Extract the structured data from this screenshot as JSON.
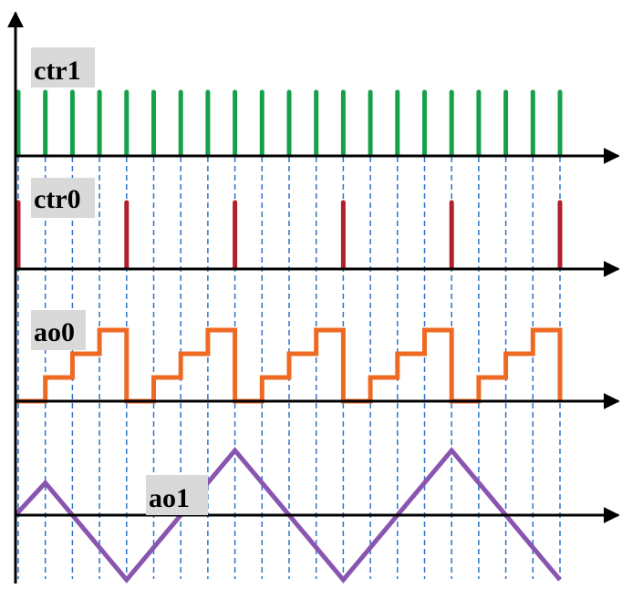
{
  "labels": {
    "ctr1": "ctr1",
    "ctr0": "ctr0",
    "ao0": "ao0",
    "ao1": "ao1"
  },
  "colors": {
    "axis": "#000000",
    "ctr1": "#15a04a",
    "ctr0": "#b0202a",
    "ao0": "#ee6a22",
    "ao1": "#8a55b0",
    "guide": "#2e75c8",
    "label_bg": "#d9d9d9"
  },
  "signals": {
    "ctr1_pulse_count": 21,
    "ctr0_pulse_every": 4,
    "ao0_step_levels": [
      0,
      1,
      2,
      3
    ],
    "ao1_waveform": "triangle"
  }
}
